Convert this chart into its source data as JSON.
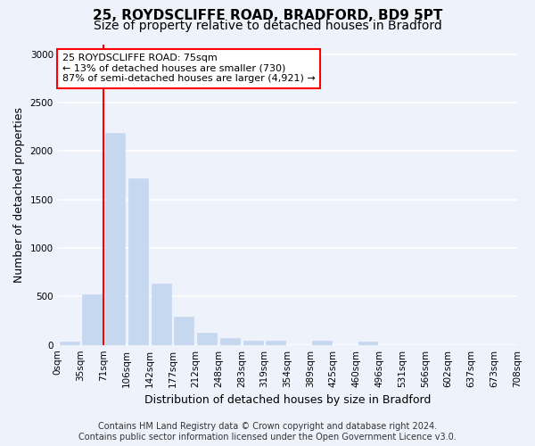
{
  "title_line1": "25, ROYDSCLIFFE ROAD, BRADFORD, BD9 5PT",
  "title_line2": "Size of property relative to detached houses in Bradford",
  "xlabel": "Distribution of detached houses by size in Bradford",
  "ylabel": "Number of detached properties",
  "bar_color": "#c5d8f0",
  "bar_edgecolor": "#c5d8f0",
  "bins": [
    "0sqm",
    "35sqm",
    "71sqm",
    "106sqm",
    "142sqm",
    "177sqm",
    "212sqm",
    "248sqm",
    "283sqm",
    "319sqm",
    "354sqm",
    "389sqm",
    "425sqm",
    "460sqm",
    "496sqm",
    "531sqm",
    "566sqm",
    "602sqm",
    "637sqm",
    "673sqm",
    "708sqm"
  ],
  "values": [
    30,
    520,
    2190,
    1720,
    630,
    290,
    130,
    75,
    45,
    40,
    0,
    45,
    0,
    30,
    0,
    0,
    0,
    0,
    0,
    0
  ],
  "ylim": [
    0,
    3100
  ],
  "yticks": [
    0,
    500,
    1000,
    1500,
    2000,
    2500,
    3000
  ],
  "annotation_title": "25 ROYDSCLIFFE ROAD: 75sqm",
  "annotation_line2": "← 13% of detached houses are smaller (730)",
  "annotation_line3": "87% of semi-detached houses are larger (4,921) →",
  "annotation_box_color": "white",
  "annotation_box_edgecolor": "red",
  "red_line_bin_index": 2,
  "footer_line1": "Contains HM Land Registry data © Crown copyright and database right 2024.",
  "footer_line2": "Contains public sector information licensed under the Open Government Licence v3.0.",
  "background_color": "#eef2fb",
  "grid_color": "#ffffff",
  "title_fontsize": 11,
  "subtitle_fontsize": 10,
  "axis_label_fontsize": 9,
  "tick_fontsize": 7.5,
  "annotation_fontsize": 8,
  "footer_fontsize": 7
}
